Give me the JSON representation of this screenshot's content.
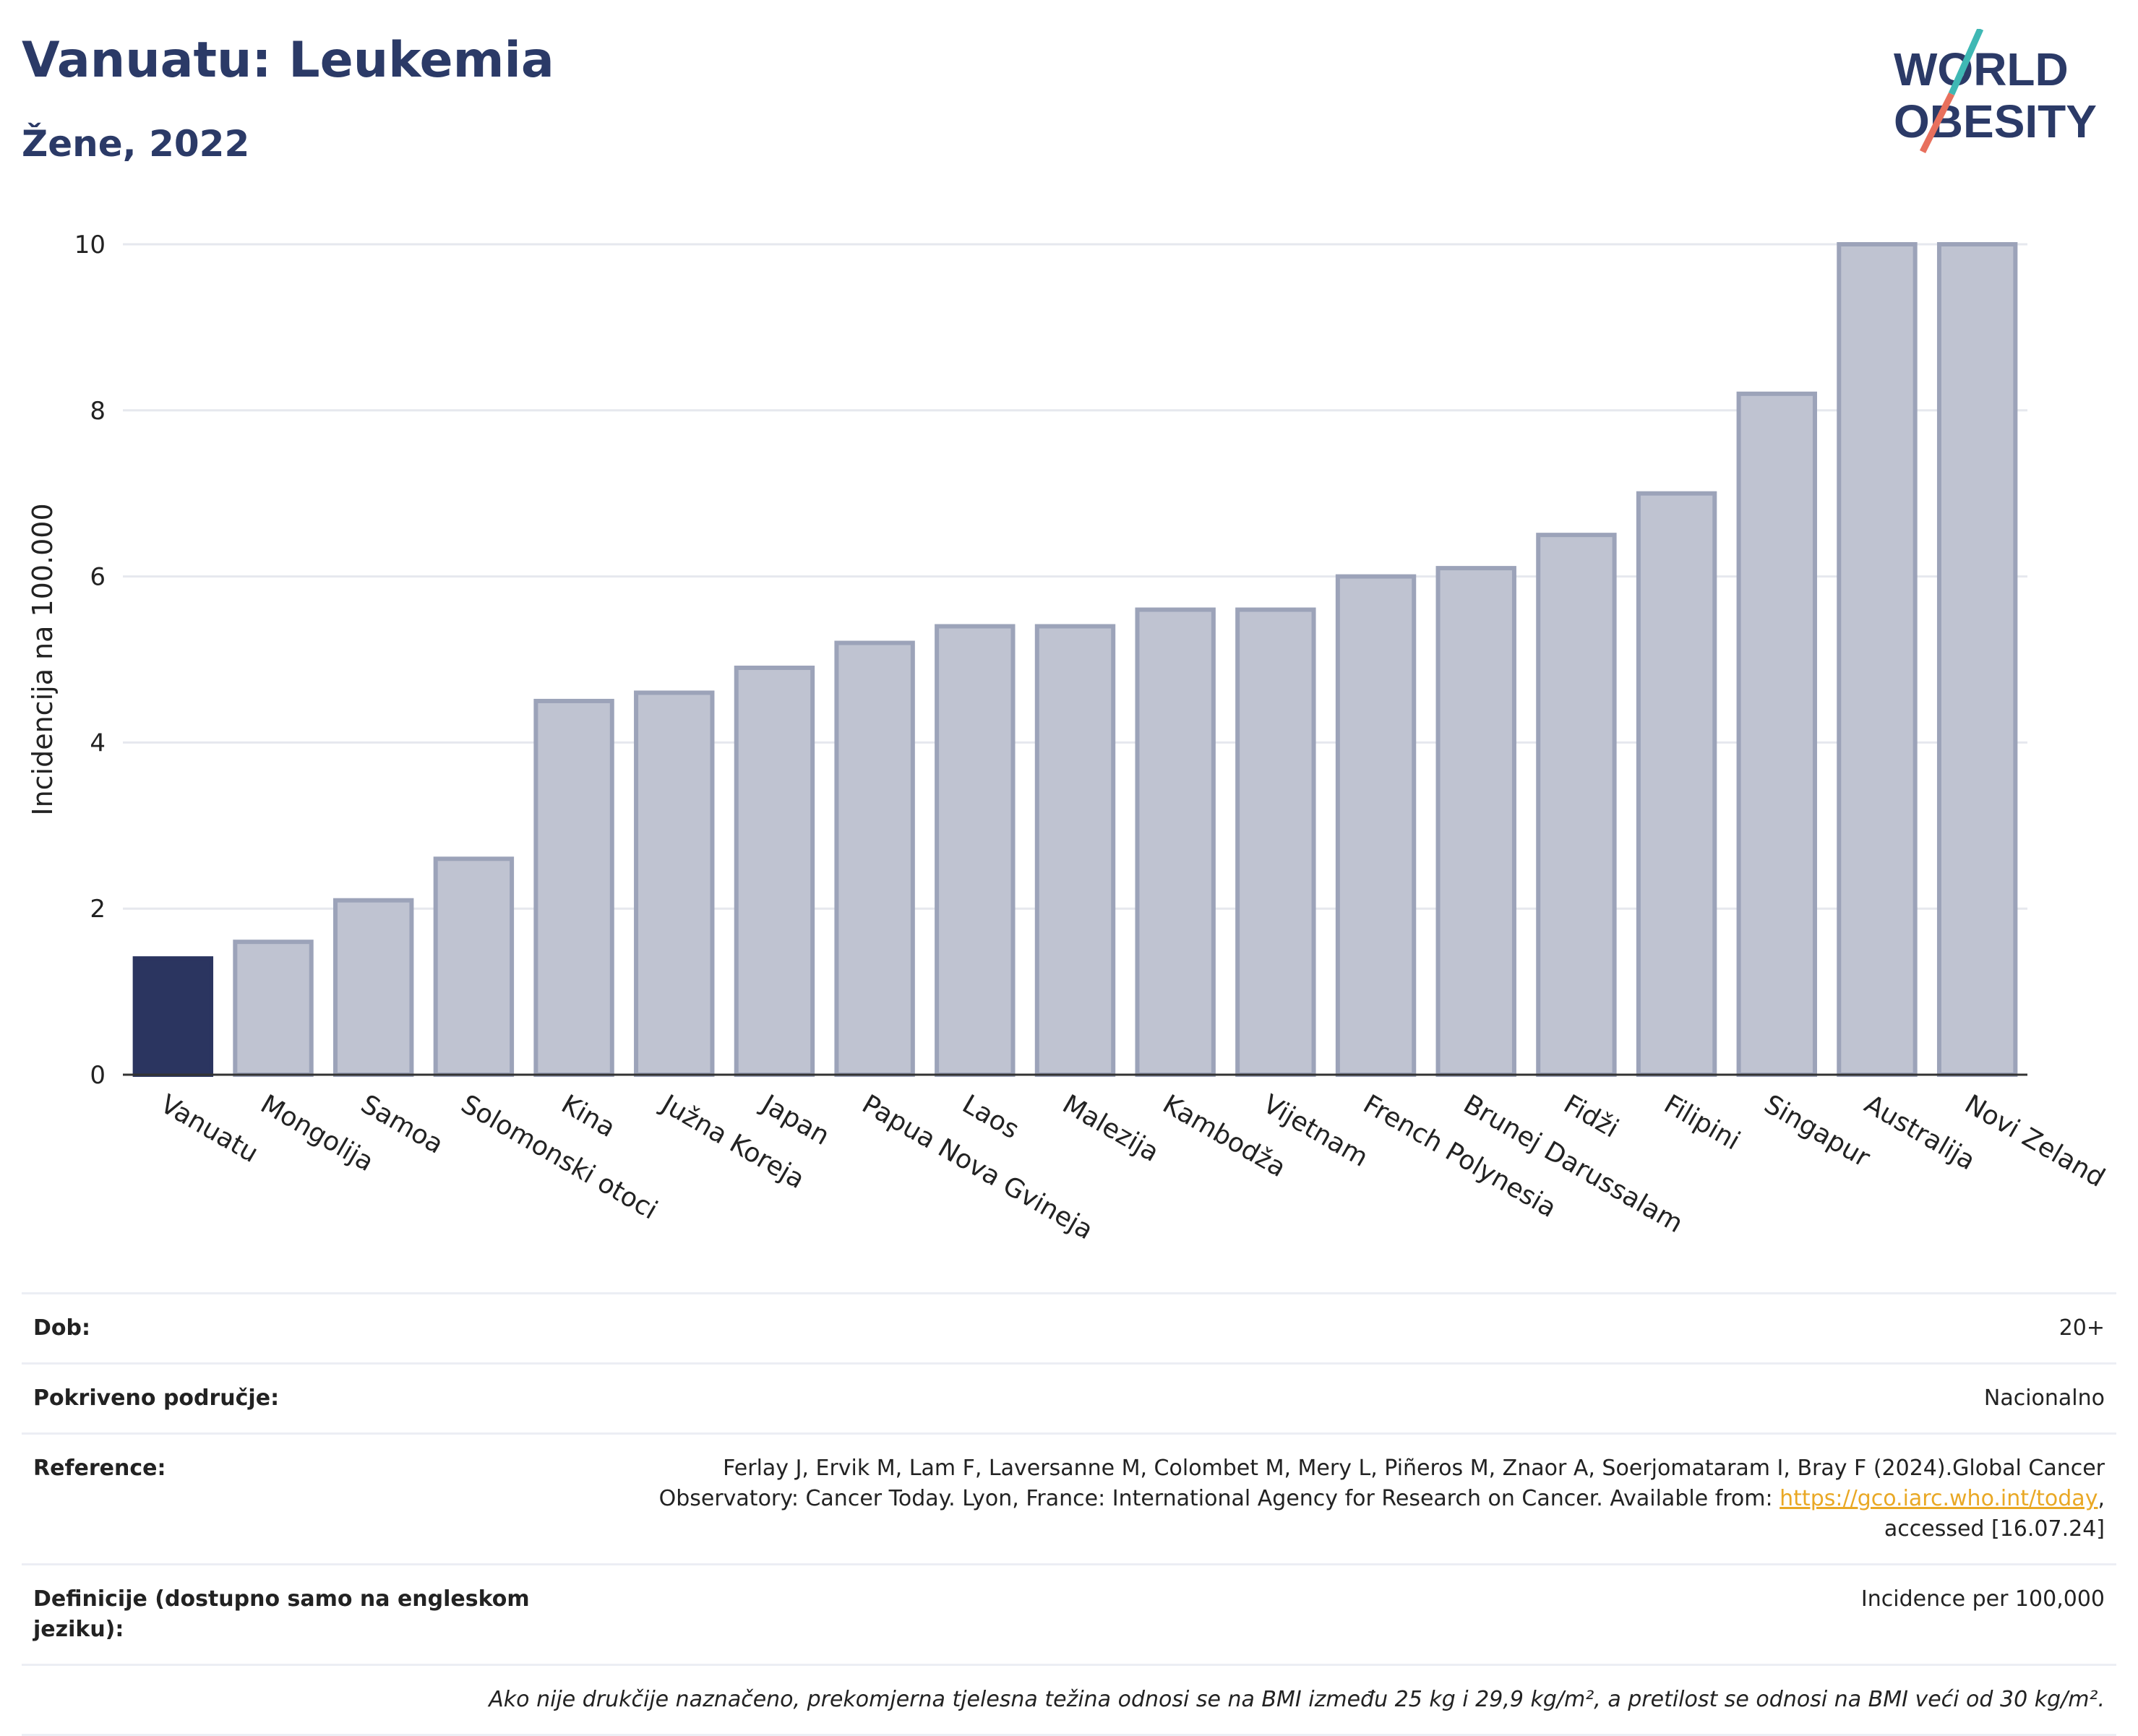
{
  "header": {
    "title": "Vanuatu: Leukemia",
    "subtitle": "Žene, 2022"
  },
  "logo": {
    "line1": "WORLD",
    "line2": "OBESITY",
    "accent_teal": "#3fb8b4",
    "accent_coral": "#e8705d",
    "color": "#2b3a67"
  },
  "chart_data": {
    "type": "bar",
    "categories": [
      "Vanuatu",
      "Mongolija",
      "Samoa",
      "Solomonski otoci",
      "Kina",
      "Južna Koreja",
      "Japan",
      "Papua Nova Gvineja",
      "Laos",
      "Malezija",
      "Kambodža",
      "Vijetnam",
      "French Polynesia",
      "Brunej Darussalam",
      "Fidži",
      "Filipini",
      "Singapur",
      "Australija",
      "Novi Zeland"
    ],
    "values": [
      1.4,
      1.6,
      2.1,
      2.6,
      4.5,
      4.6,
      4.9,
      5.2,
      5.4,
      5.4,
      5.6,
      5.6,
      6.0,
      6.1,
      6.5,
      7.0,
      8.2,
      10.0,
      10.0
    ],
    "highlight": "Vanuatu",
    "ylabel": "Incidencija na 100.000",
    "xlabel": "",
    "ylim": [
      0,
      10
    ],
    "yticks": [
      0,
      2,
      4,
      6,
      8,
      10
    ],
    "grid": true,
    "colors": {
      "highlight": "#2b3560",
      "other_fill": "#bfc3d1",
      "other_stroke": "#9ca3b9"
    }
  },
  "info": {
    "rows": [
      {
        "key": "Dob:",
        "value": "20+"
      },
      {
        "key": "Pokriveno područje:",
        "value": "Nacionalno"
      },
      {
        "key": "Reference:",
        "value_pre": "Ferlay J, Ervik M, Lam F, Laversanne M, Colombet M, Mery L, Piñeros M, Znaor A, Soerjomataram I, Bray F (2024).Global Cancer Observatory: Cancer Today. Lyon, France: International Agency for Research on Cancer. Available from: ",
        "link": "https://gco.iarc.who.int/today",
        "value_post": ", accessed [16.07.24]"
      },
      {
        "key": "Definicije (dostupno samo na engleskom jeziku):",
        "value": "Incidence per 100,000"
      }
    ],
    "footnote": "Ako nije drukčije naznačeno, prekomjerna tjelesna težina odnosi se na BMI između 25 kg i 29,9 kg/m², a pretilost se odnosi na BMI veći od 30 kg/m²."
  }
}
